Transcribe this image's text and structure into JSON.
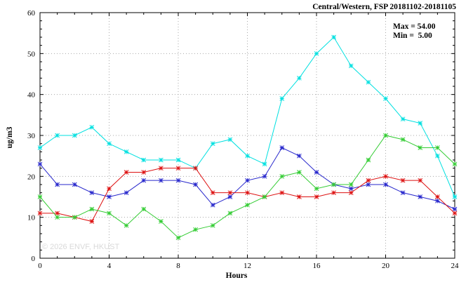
{
  "chart_data": {
    "type": "line",
    "title": "Central/Western, FSP 20181102-20181105",
    "xlabel": "Hours",
    "ylabel": "ug/m3",
    "xlim": [
      0,
      24
    ],
    "ylim": [
      0,
      60
    ],
    "xticks": [
      0,
      4,
      8,
      12,
      16,
      20,
      24
    ],
    "yticks": [
      0,
      10,
      20,
      30,
      40,
      50,
      60
    ],
    "grid": true,
    "legend": "none",
    "annotations": {
      "max_label": "Max = 54.00",
      "min_label": "Min =  5.00"
    },
    "watermark": "© 2026 ENVF, HKUST",
    "x": [
      0,
      1,
      2,
      3,
      4,
      5,
      6,
      7,
      8,
      9,
      10,
      11,
      12,
      13,
      14,
      15,
      16,
      17,
      18,
      19,
      20,
      21,
      22,
      23,
      24
    ],
    "series": [
      {
        "name": "series-cyan",
        "color": "#00e0e0",
        "values": [
          27,
          30,
          30,
          32,
          28,
          26,
          24,
          24,
          24,
          22,
          28,
          29,
          25,
          23,
          39,
          44,
          50,
          54,
          47,
          43,
          39,
          34,
          33,
          25,
          15
        ]
      },
      {
        "name": "series-blue",
        "color": "#2727cc",
        "values": [
          23,
          18,
          18,
          16,
          15,
          16,
          19,
          19,
          19,
          18,
          13,
          15,
          19,
          20,
          27,
          25,
          21,
          18,
          17,
          18,
          18,
          16,
          15,
          14,
          12
        ]
      },
      {
        "name": "series-red",
        "color": "#dd1111",
        "values": [
          11,
          11,
          10,
          9,
          17,
          21,
          21,
          22,
          22,
          22,
          16,
          16,
          16,
          15,
          16,
          15,
          15,
          16,
          16,
          19,
          20,
          19,
          19,
          15,
          11
        ]
      },
      {
        "name": "series-green",
        "color": "#33cc33",
        "values": [
          15,
          10,
          10,
          12,
          11,
          8,
          12,
          9,
          5,
          7,
          8,
          11,
          13,
          15,
          20,
          21,
          17,
          18,
          18,
          24,
          30,
          29,
          27,
          27,
          23
        ]
      }
    ]
  }
}
